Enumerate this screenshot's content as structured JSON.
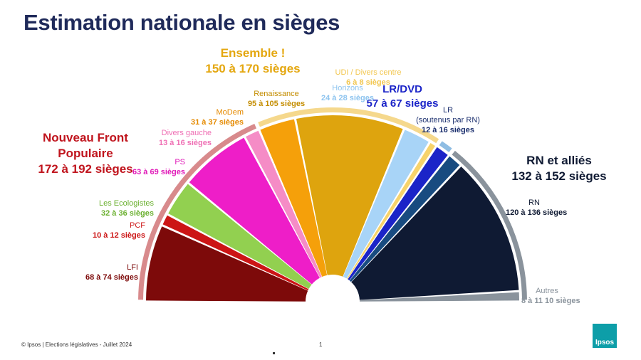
{
  "title": "Estimation nationale en sièges",
  "footer": "© Ipsos | Elections législatives - Juillet 2024",
  "page_number": "1",
  "logo_text": "Ipsos",
  "groups": {
    "nfp": {
      "name": "Nouveau Front Populaire",
      "range": "172 à 192 sièges",
      "color": "#c0141d",
      "arc_color": "#d88a8c"
    },
    "ens": {
      "name": "Ensemble !",
      "range": "150 à 170  sièges",
      "color": "#e4a70f",
      "arc_color": "#f5d88c"
    },
    "lrdvd": {
      "name": "LR/DVD",
      "range": "57 à 67 sièges",
      "color": "#1b24c8",
      "arc_color": "#8fbde3"
    },
    "rn": {
      "name": "RN et alliés",
      "range": "132 à 152 sièges",
      "color": "#0f1a33",
      "arc_color": "#8a939c"
    }
  },
  "chart_data": {
    "type": "pie",
    "title": "Estimation nationale en sièges",
    "unit": "sièges",
    "slices": [
      {
        "name": "LFI",
        "range": "68 à 74 sièges",
        "min": 68,
        "max": 74,
        "color": "#7d0a0a",
        "label_color": "#7d0a0a"
      },
      {
        "name": "PCF",
        "range": "10 à 12 sièges",
        "min": 10,
        "max": 12,
        "color": "#cc1515",
        "label_color": "#cc1515"
      },
      {
        "name": "Les Ecologistes",
        "range": "32 à 36  sièges",
        "min": 32,
        "max": 36,
        "color": "#92d050",
        "label_color": "#6bb030"
      },
      {
        "name": "PS",
        "range": "63 à 69 sièges",
        "min": 63,
        "max": 69,
        "color": "#ee1ec8",
        "label_color": "#e01ab8"
      },
      {
        "name": "Divers gauche",
        "range": "13 à 16 sièges",
        "min": 13,
        "max": 16,
        "color": "#f58cc6",
        "label_color": "#ef6fb4"
      },
      {
        "name": "MoDem",
        "range": "31 à 37 sièges",
        "min": 31,
        "max": 37,
        "color": "#f5a00a",
        "label_color": "#e58a00"
      },
      {
        "name": "Renaissance",
        "range": "95 à 105 sièges",
        "min": 95,
        "max": 105,
        "color": "#dea40e",
        "label_color": "#c48d00"
      },
      {
        "name": "Horizons",
        "range": "24 à 28 sièges",
        "min": 24,
        "max": 28,
        "color": "#a8d4f7",
        "label_color": "#8ec4ef"
      },
      {
        "name": "UDI / Divers centre",
        "range": "6 à 8 sièges",
        "min": 6,
        "max": 8,
        "color": "#f7d36b",
        "label_color": "#f2c64e"
      },
      {
        "name": "LR",
        "range": "12 à 16 sièges",
        "min": 12,
        "max": 16,
        "color": "#1b24c8",
        "label_color": "#1b2f6e",
        "extra": "(soutenus par RN)"
      },
      {
        "name": "",
        "range": "",
        "min": 12,
        "max": 16,
        "color": "#184b80",
        "label_color": "#184b80"
      },
      {
        "name": "RN",
        "range": "120 à 136 sièges",
        "min": 120,
        "max": 136,
        "color": "#0f1a33",
        "label_color": "#0f1a33"
      },
      {
        "name": "Autres",
        "range": "8 à 11 10 sièges",
        "min": 8,
        "max": 11,
        "color": "#8a939c",
        "label_color": "#8a939c"
      }
    ],
    "legend": "none"
  }
}
